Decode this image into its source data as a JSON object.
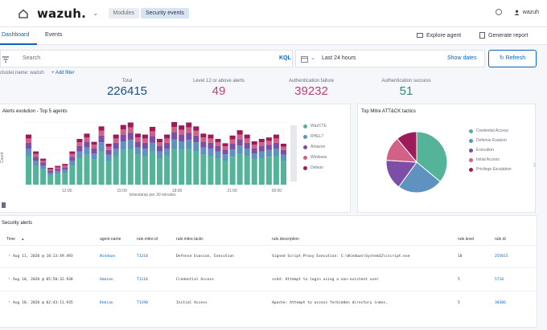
{
  "header": {
    "logo": "wazuh.",
    "breadcrumbs": [
      "Modules",
      "Security events"
    ],
    "user": "wazuh"
  },
  "tabs": [
    "Dashboard",
    "Events"
  ],
  "tab_actions": [
    "Explore agent",
    "Generate report"
  ],
  "search": {
    "placeholder": "Search",
    "language": "KQL",
    "date_range": "Last 24 hours",
    "show_dates": "Show dates",
    "refresh": "Refresh"
  },
  "filters": {
    "pinned": "cluster.name: wazuh",
    "add": "+ Add filter"
  },
  "stats": [
    {
      "label": "Total",
      "value": "226415",
      "color": "#1f4f86"
    },
    {
      "label": "Level 12 or above alerts",
      "value": "49",
      "color": "#c13d78"
    },
    {
      "label": "Authentication failure",
      "value": "39232",
      "color": "#c13d78"
    },
    {
      "label": "Authentication success",
      "value": "51",
      "color": "#2d8a7b"
    }
  ],
  "alerts_panel": {
    "title": "Alerts evolution - Top 5 agents",
    "ylabel": "Count",
    "xlabel": "timestamp per 30 minutes"
  },
  "chart_data": [
    {
      "type": "bar",
      "title": "Alerts evolution - Top 5 agents",
      "xlabel": "timestamp per 30 minutes",
      "ylabel": "Count",
      "x_ticks": [
        "12:00",
        "15:00",
        "18:00",
        "21:00",
        "00:00"
      ],
      "stacked": true,
      "series": [
        {
          "name": "WazCTE",
          "color": "#54b399",
          "values": [
            60,
            40,
            32,
            20,
            22,
            25,
            40,
            55,
            62,
            52,
            70,
            50,
            60,
            72,
            75,
            62,
            60,
            70,
            55,
            60,
            75,
            72,
            75,
            70,
            62,
            60,
            55,
            50,
            58,
            65,
            60,
            52,
            55,
            58,
            60,
            50
          ]
        },
        {
          "name": "RHEL7",
          "color": "#6092c0",
          "values": [
            15,
            10,
            8,
            5,
            6,
            6,
            10,
            14,
            15,
            13,
            18,
            12,
            15,
            18,
            18,
            15,
            15,
            17,
            14,
            15,
            19,
            18,
            18,
            18,
            15,
            15,
            14,
            13,
            15,
            16,
            15,
            13,
            14,
            14,
            15,
            12
          ]
        },
        {
          "name": "Amazon",
          "color": "#7c4ea5",
          "values": [
            12,
            8,
            6,
            4,
            5,
            5,
            8,
            11,
            12,
            10,
            14,
            10,
            12,
            14,
            15,
            12,
            12,
            14,
            11,
            12,
            15,
            14,
            15,
            14,
            12,
            12,
            11,
            10,
            12,
            13,
            12,
            10,
            11,
            11,
            12,
            10
          ]
        },
        {
          "name": "Windows",
          "color": "#d36086",
          "values": [
            9,
            6,
            4,
            3,
            3,
            4,
            6,
            8,
            9,
            8,
            10,
            7,
            9,
            11,
            11,
            9,
            9,
            10,
            8,
            9,
            11,
            10,
            11,
            10,
            9,
            9,
            8,
            7,
            9,
            10,
            9,
            8,
            8,
            8,
            9,
            7
          ]
        },
        {
          "name": "Debian",
          "color": "#9e1b5a",
          "values": [
            8,
            5,
            4,
            3,
            3,
            3,
            5,
            7,
            8,
            6,
            9,
            6,
            8,
            9,
            10,
            8,
            8,
            9,
            7,
            8,
            10,
            9,
            10,
            9,
            8,
            8,
            7,
            6,
            8,
            9,
            8,
            7,
            7,
            7,
            8,
            6
          ]
        }
      ]
    },
    {
      "type": "pie",
      "title": "Top Mitre ATT&CK tactics",
      "slices": [
        {
          "name": "Credential Access",
          "value": 36,
          "color": "#54b399"
        },
        {
          "name": "Defense Evasion",
          "value": 24,
          "color": "#6092c0"
        },
        {
          "name": "Execution",
          "value": 16,
          "color": "#7c4ea5"
        },
        {
          "name": "Initial Access",
          "value": 13,
          "color": "#d36086"
        },
        {
          "name": "Privilege Escalation",
          "value": 11,
          "color": "#9e1b5a"
        }
      ]
    }
  ],
  "mitre_panel": {
    "title": "Top Mitre ATT&CK tactics"
  },
  "security_alerts": {
    "title": "Security alerts",
    "columns": [
      "Time",
      "agent.name",
      "rule.mitre.id",
      "rule.mitre.tactic",
      "rule.description",
      "rule.level",
      "rule.id"
    ],
    "rows": [
      {
        "time": "Aug 11, 2020 @ 18:13:49.493",
        "agent": "Windows",
        "mitre_id": "T1218",
        "tactic": "Defense Evasion, Execution",
        "description": "Signed Script Proxy Execution: C:\\Windows\\System32\\cscript.exe",
        "level": "10",
        "rule_id": "255015"
      },
      {
        "time": "Aug 10, 2020 @ 05:50:32.938",
        "agent": "Amazon",
        "mitre_id": "T1110",
        "tactic": "Credential Access",
        "description": "sshd: Attempt to login using a non-existent user",
        "level": "5",
        "rule_id": "5710"
      },
      {
        "time": "Aug 10, 2020 @ 02:43:11.935",
        "agent": "Debian",
        "mitre_id": "T1190",
        "tactic": "Initial Access",
        "description": "Apache: Attempt to access forbidden directory index.",
        "level": "5",
        "rule_id": "30306"
      }
    ]
  }
}
